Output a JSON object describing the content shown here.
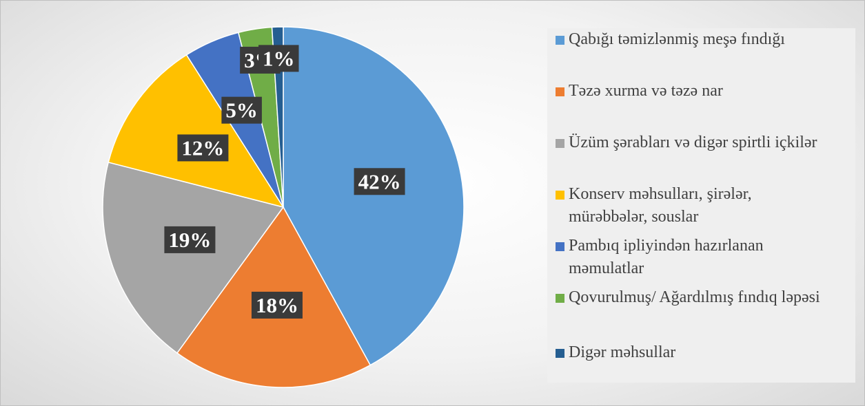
{
  "chart_data": {
    "type": "pie",
    "categories": [
      "Qabığı təmizlənmiş meşə fındığı",
      "Təzə xurma və təzə nar",
      "Üzüm şərabları və digər spirtli içkilər",
      "Konserv məhsulları, şirələr, mürəbbələr, souslar",
      "Pambıq ipliyindən hazırlanan məmulatlar",
      "Qovurulmuş/ Ağardılmış fındıq ləpəsi",
      "Digər məhsullar"
    ],
    "values": [
      42,
      18,
      19,
      12,
      5,
      3,
      1
    ],
    "value_labels": [
      "42%",
      "18%",
      "19%",
      "12%",
      "5%",
      "3%",
      "1%"
    ],
    "colors": [
      "#5b9bd5",
      "#ed7d31",
      "#a5a5a5",
      "#ffc000",
      "#4472c4",
      "#70ad47",
      "#255e91"
    ],
    "legend": "right"
  }
}
